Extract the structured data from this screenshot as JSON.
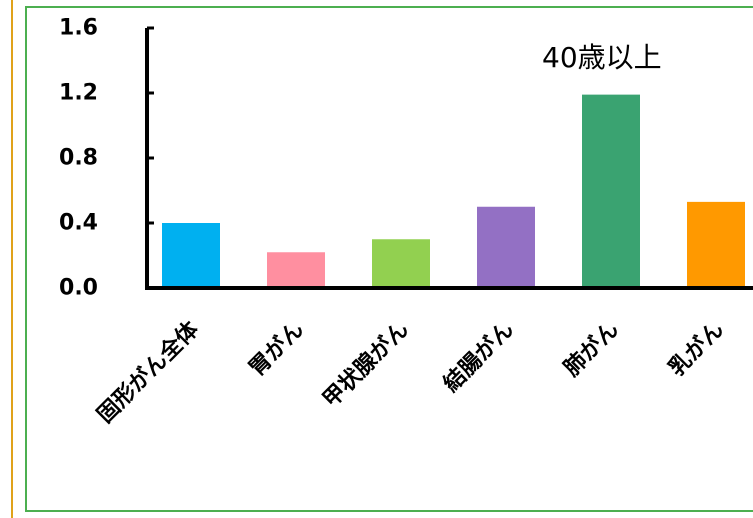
{
  "chart_data": {
    "type": "bar",
    "title": "",
    "annotation": "40歳以上",
    "xlabel": "",
    "ylabel": "",
    "ylim": [
      0,
      1.6
    ],
    "yticks": [
      "0.0",
      "0.4",
      "0.8",
      "1.2",
      "1.6"
    ],
    "grid": false,
    "categories": [
      "固形がん全体",
      "胃がん",
      "甲状腺がん",
      "結腸がん",
      "肺がん",
      "乳がん"
    ],
    "values": [
      0.4,
      0.22,
      0.3,
      0.5,
      1.19,
      0.53
    ],
    "colors": [
      "#00b0f0",
      "#ff8fa0",
      "#92d050",
      "#9370c4",
      "#3aa371",
      "#ff9900"
    ]
  }
}
